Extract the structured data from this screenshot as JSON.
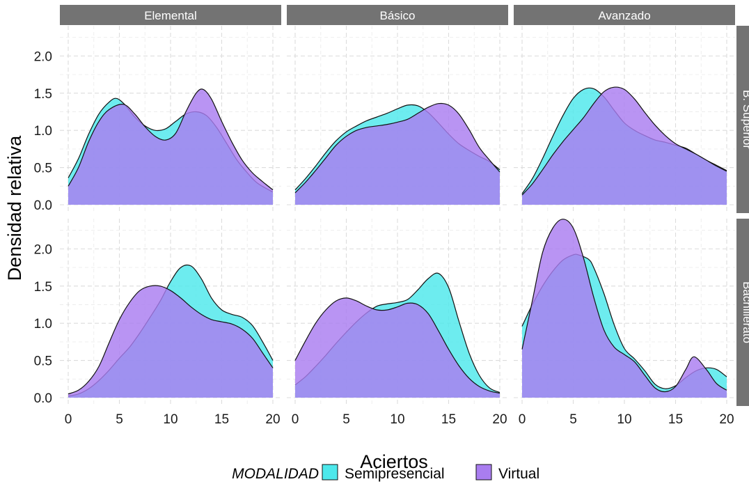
{
  "chart_data": {
    "type": "area",
    "xlabel": "Aciertos",
    "ylabel": "Densidad relativa",
    "xlim": [
      0,
      20
    ],
    "ylim": [
      0,
      2.35
    ],
    "x_ticks": [
      0,
      5,
      10,
      15,
      20
    ],
    "y_ticks": [
      0,
      0.5,
      1,
      1.5,
      2
    ],
    "y_tick_labels": [
      "0.0",
      "0.5",
      "1.0",
      "1.5",
      "2.0"
    ],
    "grid": true,
    "columns": [
      "Elemental",
      "Básico",
      "Avanzado"
    ],
    "rows": [
      "B. Superior",
      "Bachillerato"
    ],
    "legend": {
      "title": "MODALIDAD",
      "position": "bottom",
      "items": [
        {
          "name": "Semipresencial",
          "color": "#4de8eb"
        },
        {
          "name": "Virtual",
          "color": "#a97df0"
        }
      ]
    },
    "overlap_color": "#8a93f3",
    "panels": [
      {
        "row": "B. Superior",
        "col": "Elemental",
        "series": [
          {
            "name": "Semipresencial",
            "x": [
              0,
              1,
              2,
              3,
              4,
              4.7,
              5.5,
              6.5,
              7.5,
              8.5,
              9.5,
              10.5,
              11.5,
              12.5,
              13.5,
              14.5,
              15.5,
              16.5,
              17.5,
              18.5,
              20
            ],
            "y": [
              0.36,
              0.62,
              0.95,
              1.22,
              1.38,
              1.43,
              1.35,
              1.18,
              1.06,
              1.0,
              1.02,
              1.12,
              1.22,
              1.25,
              1.2,
              1.04,
              0.82,
              0.6,
              0.43,
              0.29,
              0.17
            ]
          },
          {
            "name": "Virtual",
            "x": [
              0,
              1,
              2,
              3,
              4,
              5.4,
              6.5,
              7.5,
              8.5,
              9.5,
              10.5,
              11.5,
              12.5,
              13.2,
              14,
              15,
              16,
              17,
              18,
              19,
              20
            ],
            "y": [
              0.25,
              0.5,
              0.85,
              1.12,
              1.28,
              1.35,
              1.22,
              1.05,
              0.92,
              0.87,
              0.96,
              1.25,
              1.5,
              1.55,
              1.42,
              1.12,
              0.84,
              0.6,
              0.43,
              0.31,
              0.2
            ]
          }
        ]
      },
      {
        "row": "B. Superior",
        "col": "Básico",
        "series": [
          {
            "name": "Semipresencial",
            "x": [
              0,
              1,
              2,
              3,
              4,
              5,
              6,
              7,
              8,
              9,
              10,
              11,
              12,
              13,
              14,
              15,
              16,
              17,
              18,
              19,
              20
            ],
            "y": [
              0.2,
              0.35,
              0.52,
              0.7,
              0.86,
              0.98,
              1.06,
              1.13,
              1.18,
              1.23,
              1.29,
              1.34,
              1.33,
              1.24,
              1.1,
              0.95,
              0.82,
              0.73,
              0.65,
              0.58,
              0.47
            ]
          },
          {
            "name": "Virtual",
            "x": [
              0,
              1,
              2,
              3,
              4,
              5,
              6,
              7,
              8,
              9,
              10,
              11,
              12,
              13,
              14,
              15,
              16,
              17,
              18,
              19,
              20
            ],
            "y": [
              0.16,
              0.3,
              0.46,
              0.63,
              0.8,
              0.92,
              1.0,
              1.04,
              1.06,
              1.08,
              1.11,
              1.15,
              1.23,
              1.31,
              1.36,
              1.34,
              1.22,
              1.01,
              0.77,
              0.6,
              0.44
            ]
          }
        ]
      },
      {
        "row": "B. Superior",
        "col": "Avanzado",
        "series": [
          {
            "name": "Semipresencial",
            "x": [
              0,
              1,
              2,
              3,
              4,
              5,
              6,
              7,
              8,
              9,
              10,
              11,
              12,
              13,
              14,
              15,
              16,
              17,
              18,
              19,
              20
            ],
            "y": [
              0.15,
              0.35,
              0.62,
              0.92,
              1.2,
              1.43,
              1.55,
              1.56,
              1.45,
              1.27,
              1.1,
              1.0,
              0.93,
              0.87,
              0.84,
              0.8,
              0.76,
              0.68,
              0.6,
              0.53,
              0.46
            ]
          },
          {
            "name": "Virtual",
            "x": [
              0,
              1,
              2,
              3,
              4,
              5,
              6,
              7,
              8,
              9,
              10,
              11,
              12,
              13,
              14,
              15,
              16,
              17,
              18,
              19,
              20
            ],
            "y": [
              0.13,
              0.28,
              0.47,
              0.67,
              0.85,
              1.01,
              1.17,
              1.36,
              1.52,
              1.58,
              1.55,
              1.42,
              1.24,
              1.07,
              0.93,
              0.82,
              0.75,
              0.68,
              0.6,
              0.52,
              0.45
            ]
          }
        ]
      },
      {
        "row": "Bachillerato",
        "col": "Elemental",
        "series": [
          {
            "name": "Semipresencial",
            "x": [
              0,
              1,
              2,
              3,
              4,
              5,
              6,
              7,
              8,
              9,
              10,
              11,
              12,
              13,
              14,
              15,
              16,
              17,
              18,
              19,
              20
            ],
            "y": [
              0.02,
              0.05,
              0.12,
              0.23,
              0.37,
              0.53,
              0.68,
              0.87,
              1.08,
              1.3,
              1.56,
              1.75,
              1.77,
              1.6,
              1.34,
              1.18,
              1.12,
              1.08,
              0.97,
              0.75,
              0.5
            ]
          },
          {
            "name": "Virtual",
            "x": [
              0,
              1,
              2,
              3,
              4,
              5,
              6,
              7,
              8,
              9,
              10,
              11,
              12,
              13,
              14,
              15,
              16,
              17,
              18,
              19,
              20
            ],
            "y": [
              0.05,
              0.1,
              0.22,
              0.42,
              0.74,
              1.05,
              1.28,
              1.44,
              1.5,
              1.5,
              1.44,
              1.34,
              1.22,
              1.12,
              1.05,
              1.02,
              0.99,
              0.92,
              0.8,
              0.6,
              0.4
            ]
          }
        ]
      },
      {
        "row": "Bachillerato",
        "col": "Básico",
        "series": [
          {
            "name": "Semipresencial",
            "x": [
              0,
              1,
              2,
              3,
              4,
              5,
              6,
              7,
              8,
              9,
              10,
              11,
              12,
              13,
              14,
              15,
              16,
              17,
              18,
              19,
              20
            ],
            "y": [
              0.17,
              0.28,
              0.42,
              0.57,
              0.73,
              0.88,
              1.02,
              1.14,
              1.23,
              1.26,
              1.28,
              1.32,
              1.45,
              1.6,
              1.67,
              1.48,
              1.03,
              0.6,
              0.3,
              0.13,
              0.07
            ]
          },
          {
            "name": "Virtual",
            "x": [
              0,
              1,
              2,
              3,
              4,
              5,
              6,
              7,
              8,
              9,
              10,
              11,
              12,
              13,
              14,
              15,
              16,
              17,
              18,
              19,
              20
            ],
            "y": [
              0.5,
              0.76,
              1.0,
              1.18,
              1.3,
              1.34,
              1.3,
              1.23,
              1.18,
              1.18,
              1.22,
              1.27,
              1.25,
              1.13,
              0.9,
              0.65,
              0.43,
              0.26,
              0.15,
              0.09,
              0.06
            ]
          }
        ]
      },
      {
        "row": "Bachillerato",
        "col": "Avanzado",
        "series": [
          {
            "name": "Semipresencial",
            "x": [
              0,
              1,
              2,
              3,
              4,
              5,
              5.5,
              6.5,
              7,
              8,
              9,
              10,
              11,
              12,
              13,
              14,
              15,
              16,
              17,
              18,
              19,
              20
            ],
            "y": [
              0.96,
              1.25,
              1.5,
              1.7,
              1.85,
              1.92,
              1.92,
              1.86,
              1.75,
              1.4,
              0.98,
              0.66,
              0.52,
              0.36,
              0.18,
              0.12,
              0.16,
              0.27,
              0.36,
              0.4,
              0.38,
              0.28
            ]
          },
          {
            "name": "Virtual",
            "x": [
              0,
              1,
              2,
              3,
              4,
              5,
              6,
              7,
              8,
              9,
              10,
              11,
              12,
              13,
              14,
              15,
              16,
              16.8,
              18,
              19,
              20
            ],
            "y": [
              0.65,
              1.3,
              1.95,
              2.28,
              2.4,
              2.28,
              1.88,
              1.35,
              0.91,
              0.68,
              0.58,
              0.48,
              0.3,
              0.13,
              0.08,
              0.15,
              0.38,
              0.55,
              0.38,
              0.19,
              0.1
            ]
          }
        ]
      }
    ]
  }
}
